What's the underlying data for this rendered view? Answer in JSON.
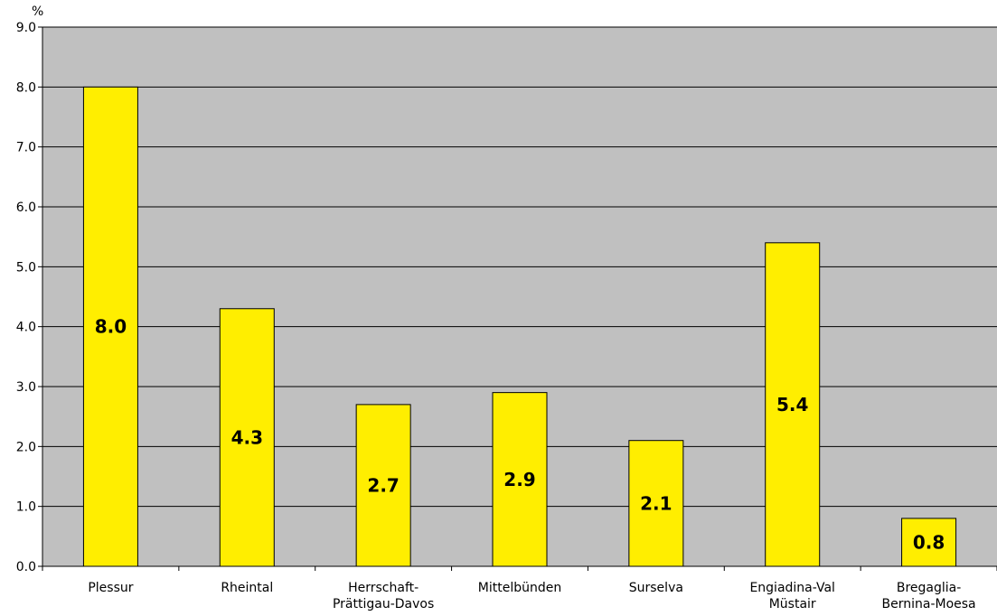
{
  "chart_data": {
    "type": "bar",
    "unit_label": "%",
    "categories": [
      [
        "Plessur"
      ],
      [
        "Rheintal"
      ],
      [
        "Herrschaft-",
        "Prättigau-Davos"
      ],
      [
        "Mittelbünden"
      ],
      [
        "Surselva"
      ],
      [
        "Engiadina-Val",
        "Müstair"
      ],
      [
        "Bregaglia-",
        "Bernina-Moesa"
      ]
    ],
    "values": [
      8.0,
      4.3,
      2.7,
      2.9,
      2.1,
      5.4,
      0.8
    ],
    "data_labels": [
      "8.0",
      "4.3",
      "2.7",
      "2.9",
      "2.1",
      "5.4",
      "0.8"
    ],
    "ylim": [
      0,
      9
    ],
    "yticks": [
      "0.0",
      "1.0",
      "2.0",
      "3.0",
      "4.0",
      "5.0",
      "6.0",
      "7.0",
      "8.0",
      "9.0"
    ],
    "grid": true,
    "legend": false,
    "colors": {
      "bar_fill": "#ffee00",
      "bar_stroke": "#000000",
      "plot_background": "#c0c0c0",
      "gridline": "#000000"
    }
  }
}
